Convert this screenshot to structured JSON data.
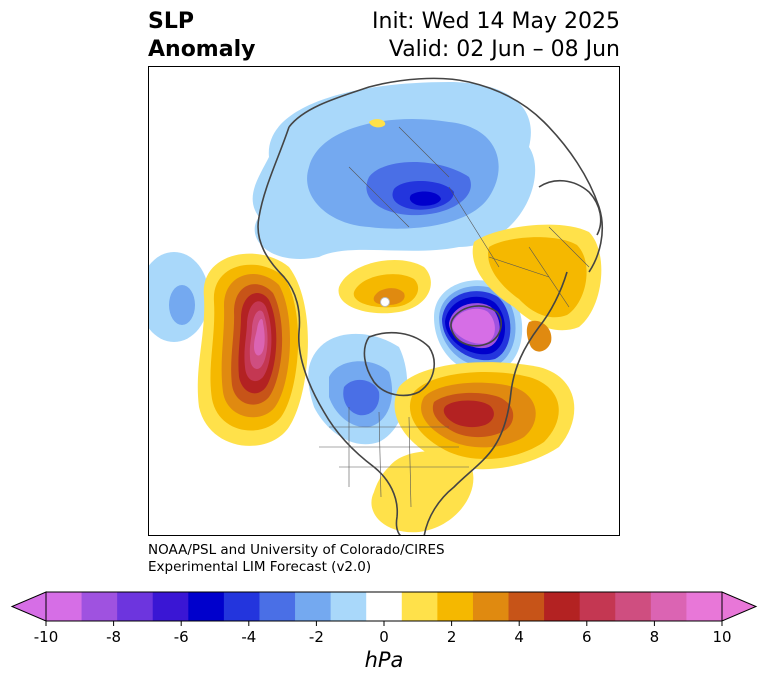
{
  "title": {
    "left_line1": "SLP",
    "left_line2": "Anomaly",
    "right_line1": "Init: Wed 14 May 2025",
    "right_line2": "Valid: 02 Jun – 08 Jun"
  },
  "credit": {
    "line1": "NOAA/PSL and University of Colorado/CIRES",
    "line2": "Experimental LIM Forecast (v2.0)"
  },
  "colorbar": {
    "unit": "hPa",
    "ticks": [
      "-10",
      "-8",
      "-6",
      "-4",
      "-2",
      "0",
      "2",
      "4",
      "6",
      "8",
      "10"
    ],
    "colors": [
      "#d66ee6",
      "#9f52e0",
      "#6d35de",
      "#3a16d4",
      "#0000cc",
      "#2335dd",
      "#4a6fe6",
      "#74a9f0",
      "#a9d8fa",
      "#ffffff",
      "#ffe14a",
      "#f5b800",
      "#e08a10",
      "#c75418",
      "#b32222",
      "#c43752",
      "#cf4e80",
      "#db64b3",
      "#e877d8"
    ],
    "min_color": "#d66ee6",
    "max_color": "#e877d8"
  },
  "map": {
    "projection": "north-polar-stereographic",
    "coastline_color": "#444444",
    "features": [
      {
        "name": "neg-anomaly-arctic",
        "min": -6
      },
      {
        "name": "neg-anomaly-north-atlantic",
        "min": -10
      },
      {
        "name": "neg-anomaly-north-pacific",
        "min": -4
      },
      {
        "name": "neg-anomaly-central-north-america",
        "min": -4
      },
      {
        "name": "pos-anomaly-northeast-pacific",
        "max": 10
      },
      {
        "name": "pos-anomaly-eastern-north-america",
        "max": 6
      },
      {
        "name": "pos-anomaly-europe",
        "max": 4
      },
      {
        "name": "pos-anomaly-southeast-us",
        "max": 2
      }
    ]
  }
}
